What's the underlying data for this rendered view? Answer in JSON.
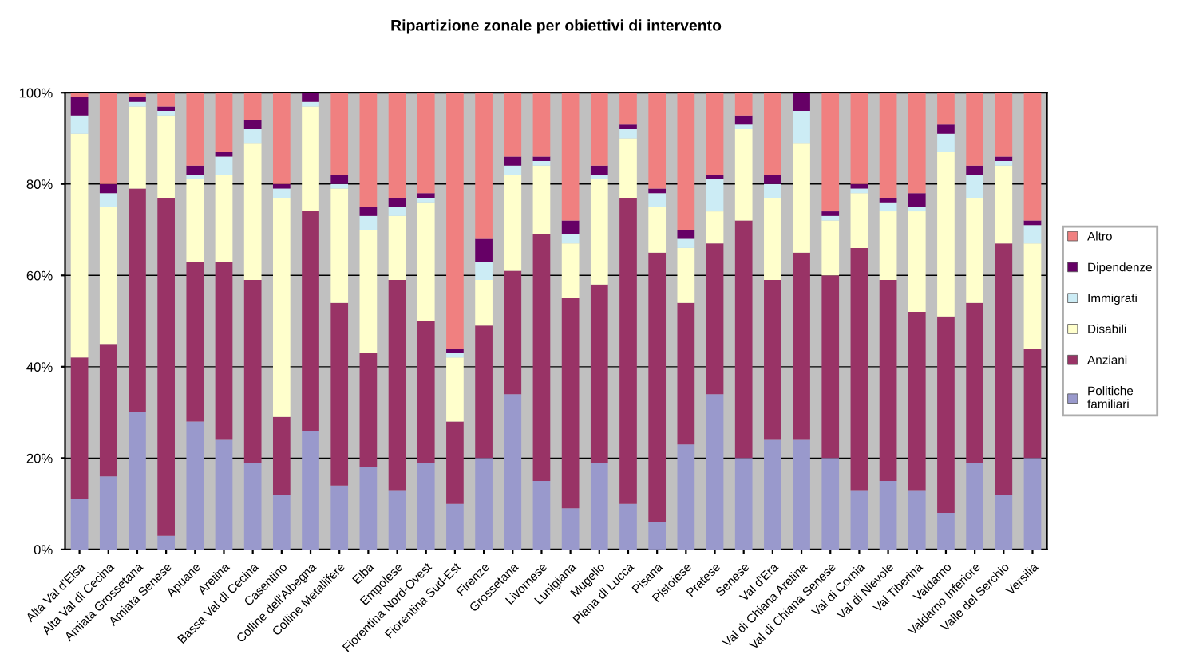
{
  "chart_data": {
    "type": "bar",
    "stacked": true,
    "title": "Ripartizione zonale per obiettivi di intervento",
    "categories": [
      "Alta Val d'Elsa",
      "Alta Val di Cecina",
      "Amiata Grossetana",
      "Amiata Senese",
      "Apuane",
      "Aretina",
      "Bassa Val di Cecina",
      "Casentino",
      "Colline dell'Albegna",
      "Colline Metallifere",
      "Elba",
      "Empolese",
      "Fiorentina Nord-Ovest",
      "Fiorentina Sud-Est",
      "Firenze",
      "Grossetana",
      "Livornese",
      "Lunigiana",
      "Mugello",
      "Piana di Lucca",
      "Pisana",
      "Pistoiese",
      "Pratese",
      "Senese",
      "Val d'Era",
      "Val di Chiana Aretina",
      "Val di Chiana Senese",
      "Val di Cornia",
      "Val di Nievole",
      "Val Tiberina",
      "Valdarno",
      "Valdarno Inferiore",
      "Valle del Serchio",
      "Versilia"
    ],
    "series": [
      {
        "name": "Politiche familiari",
        "color": "#9999cc",
        "values": [
          11,
          16,
          30,
          3,
          28,
          24,
          19,
          12,
          26,
          14,
          18,
          13,
          19,
          10,
          20,
          34,
          15,
          9,
          19,
          10,
          6,
          23,
          34,
          20,
          24,
          24,
          20,
          13,
          15,
          13,
          8,
          19,
          12,
          20
        ]
      },
      {
        "name": "Anziani",
        "color": "#993366",
        "values": [
          31,
          29,
          49,
          74,
          35,
          39,
          40,
          17,
          48,
          40,
          25,
          46,
          31,
          18,
          29,
          27,
          54,
          46,
          39,
          67,
          59,
          31,
          33,
          52,
          35,
          41,
          40,
          53,
          44,
          39,
          43,
          35,
          55,
          24
        ]
      },
      {
        "name": "Disabili",
        "color": "#ffffcc",
        "values": [
          49,
          30,
          18,
          18,
          18,
          19,
          30,
          48,
          23,
          25,
          27,
          14,
          26,
          14,
          10,
          21,
          15,
          12,
          23,
          13,
          10,
          12,
          7,
          20,
          18,
          24,
          12,
          12,
          15,
          22,
          36,
          23,
          17,
          23
        ]
      },
      {
        "name": "Immigrati",
        "color": "#ccecf5",
        "values": [
          4,
          3,
          1,
          1,
          1,
          4,
          3,
          2,
          1,
          1,
          3,
          2,
          1,
          1,
          4,
          2,
          1,
          2,
          1,
          2,
          3,
          2,
          7,
          1,
          3,
          7,
          1,
          1,
          2,
          1,
          4,
          5,
          1,
          4
        ]
      },
      {
        "name": "Dipendenze",
        "color": "#660066",
        "values": [
          4,
          2,
          1,
          1,
          2,
          1,
          2,
          1,
          2,
          2,
          2,
          2,
          1,
          1,
          5,
          2,
          1,
          3,
          2,
          1,
          1,
          2,
          1,
          2,
          2,
          4,
          1,
          1,
          1,
          3,
          2,
          2,
          1,
          1
        ]
      },
      {
        "name": "Altro",
        "color": "#f08080",
        "values": [
          1,
          20,
          1,
          3,
          16,
          13,
          6,
          20,
          0,
          18,
          25,
          23,
          22,
          56,
          32,
          14,
          14,
          28,
          16,
          7,
          21,
          30,
          18,
          5,
          18,
          0,
          26,
          20,
          23,
          22,
          7,
          16,
          14,
          28
        ]
      }
    ],
    "ylim": [
      0,
      100
    ],
    "yticks": [
      {
        "value": 0,
        "label": "0%"
      },
      {
        "value": 20,
        "label": "20%"
      },
      {
        "value": 40,
        "label": "40%"
      },
      {
        "value": 60,
        "label": "60%"
      },
      {
        "value": 80,
        "label": "80%"
      },
      {
        "value": 100,
        "label": "100%"
      }
    ],
    "grid": "y",
    "legend": "right"
  }
}
